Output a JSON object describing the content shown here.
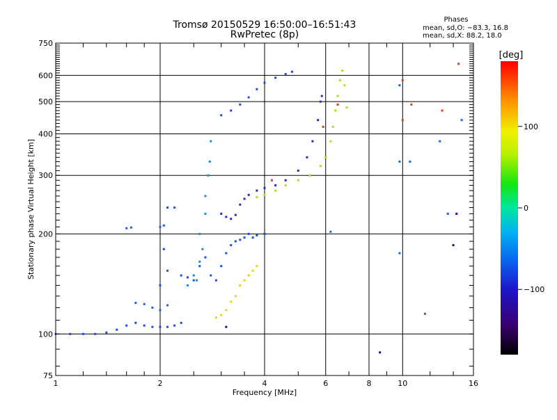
{
  "header": {
    "title_line1": "Tromsø 20150529 16:50:00–16:51:43",
    "title_line2": "RwPretec (8p)",
    "phases_title": "Phases",
    "phases_o": "mean, sd,O: −83.3, 16.8",
    "phases_x": "mean, sd,X:  88.2, 18.0"
  },
  "colorbar": {
    "label": "[deg]",
    "min": -180,
    "max": 180,
    "ticks": [
      {
        "value": 100,
        "label": "100"
      },
      {
        "value": 0,
        "label": "0"
      },
      {
        "value": -100,
        "label": "−100"
      }
    ]
  },
  "chart_data": {
    "type": "scatter",
    "xlabel": "Frequency [MHz]",
    "ylabel": "Stationary phase Virtual Height [km]",
    "x_scale": "log",
    "y_scale": "log",
    "xlim": [
      1,
      16
    ],
    "ylim": [
      75,
      750
    ],
    "x_ticks": [
      {
        "value": 1,
        "label": "1"
      },
      {
        "value": 2,
        "label": "2"
      },
      {
        "value": 4,
        "label": "4"
      },
      {
        "value": 6,
        "label": "6"
      },
      {
        "value": 8,
        "label": "8"
      },
      {
        "value": 10,
        "label": "10"
      },
      {
        "value": 16,
        "label": "16"
      }
    ],
    "x_grid": [
      2,
      4,
      6,
      8,
      10
    ],
    "y_ticks": [
      {
        "value": 75,
        "label": "75"
      },
      {
        "value": 100,
        "label": "100"
      },
      {
        "value": 200,
        "label": "200"
      },
      {
        "value": 300,
        "label": "300"
      },
      {
        "value": 400,
        "label": "400"
      },
      {
        "value": 500,
        "label": "500"
      },
      {
        "value": 600,
        "label": "600"
      },
      {
        "value": 750,
        "label": "750"
      }
    ],
    "y_grid": [
      100,
      200,
      300,
      400,
      500,
      600
    ],
    "series": [
      {
        "color": "#1e46e6",
        "points": [
          [
            1.0,
            100
          ],
          [
            1.1,
            100
          ],
          [
            1.2,
            100
          ],
          [
            1.3,
            100
          ],
          [
            1.4,
            101
          ],
          [
            1.5,
            103
          ],
          [
            1.6,
            106
          ],
          [
            1.7,
            108
          ],
          [
            1.8,
            106
          ],
          [
            1.9,
            105
          ],
          [
            2.0,
            105
          ],
          [
            2.1,
            105
          ],
          [
            2.2,
            106
          ],
          [
            2.3,
            108
          ]
        ]
      },
      {
        "color": "#1e5fe6",
        "points": [
          [
            1.7,
            124
          ],
          [
            1.8,
            123
          ],
          [
            1.9,
            120
          ],
          [
            2.0,
            118
          ],
          [
            2.1,
            122
          ],
          [
            1.6,
            208
          ],
          [
            1.65,
            209
          ],
          [
            2.0,
            210
          ],
          [
            2.05,
            212
          ]
        ]
      },
      {
        "color": "#1450f0",
        "points": [
          [
            2.0,
            140
          ],
          [
            2.1,
            155
          ],
          [
            2.05,
            180
          ],
          [
            2.1,
            240
          ],
          [
            2.2,
            240
          ],
          [
            2.3,
            150
          ],
          [
            2.4,
            148
          ],
          [
            2.5,
            145
          ],
          [
            2.6,
            160
          ],
          [
            2.7,
            170
          ],
          [
            2.8,
            150
          ],
          [
            2.9,
            145
          ],
          [
            3.0,
            160
          ],
          [
            3.1,
            175
          ],
          [
            3.2,
            185
          ],
          [
            3.3,
            190
          ],
          [
            3.4,
            192
          ],
          [
            3.5,
            195
          ],
          [
            3.6,
            200
          ],
          [
            3.7,
            195
          ],
          [
            3.8,
            198
          ],
          [
            4.0,
            200
          ]
        ]
      },
      {
        "color": "#148cdc",
        "points": [
          [
            2.4,
            140
          ],
          [
            2.5,
            150
          ],
          [
            2.6,
            200
          ],
          [
            2.7,
            230
          ],
          [
            2.75,
            300
          ],
          [
            2.8,
            380
          ],
          [
            2.78,
            330
          ],
          [
            2.7,
            260
          ],
          [
            2.65,
            180
          ],
          [
            2.6,
            165
          ],
          [
            2.55,
            145
          ]
        ]
      },
      {
        "color": "#2828c8",
        "points": [
          [
            3.0,
            230
          ],
          [
            3.1,
            225
          ],
          [
            3.2,
            222
          ],
          [
            3.3,
            228
          ],
          [
            3.4,
            245
          ],
          [
            3.5,
            255
          ],
          [
            3.6,
            262
          ],
          [
            3.8,
            270
          ],
          [
            4.0,
            275
          ],
          [
            4.3,
            280
          ],
          [
            4.6,
            290
          ],
          [
            5.0,
            310
          ],
          [
            5.3,
            340
          ],
          [
            5.5,
            380
          ],
          [
            5.7,
            440
          ],
          [
            5.8,
            500
          ],
          [
            5.85,
            520
          ]
        ]
      },
      {
        "color": "#2846d2",
        "points": [
          [
            3.0,
            455
          ],
          [
            3.2,
            470
          ],
          [
            3.4,
            490
          ],
          [
            3.6,
            515
          ],
          [
            3.8,
            545
          ],
          [
            4.0,
            570
          ],
          [
            4.3,
            590
          ],
          [
            4.6,
            605
          ],
          [
            4.8,
            615
          ]
        ]
      },
      {
        "color": "#a0e614",
        "points": [
          [
            3.8,
            258
          ],
          [
            4.0,
            262
          ],
          [
            4.3,
            270
          ],
          [
            4.6,
            280
          ],
          [
            5.0,
            290
          ],
          [
            5.4,
            300
          ],
          [
            5.8,
            320
          ],
          [
            6.0,
            340
          ],
          [
            6.2,
            380
          ],
          [
            6.3,
            420
          ],
          [
            6.4,
            470
          ],
          [
            6.5,
            520
          ],
          [
            6.6,
            580
          ],
          [
            6.7,
            620
          ],
          [
            6.8,
            560
          ],
          [
            6.9,
            480
          ]
        ]
      },
      {
        "color": "#e6d214",
        "points": [
          [
            2.9,
            112
          ],
          [
            3.0,
            114
          ],
          [
            3.1,
            118
          ],
          [
            3.2,
            125
          ],
          [
            3.3,
            130
          ],
          [
            3.4,
            140
          ],
          [
            3.5,
            145
          ],
          [
            3.6,
            150
          ],
          [
            3.7,
            155
          ],
          [
            3.8,
            160
          ]
        ]
      },
      {
        "color": "#dc3c14",
        "points": [
          [
            10.0,
            440
          ],
          [
            10.0,
            580
          ],
          [
            10.6,
            490
          ],
          [
            14.5,
            650
          ],
          [
            13.0,
            470
          ],
          [
            6.5,
            490
          ],
          [
            5.9,
            420
          ],
          [
            4.2,
            290
          ]
        ]
      },
      {
        "color": "#1e64dc",
        "points": [
          [
            9.8,
            560
          ],
          [
            9.8,
            330
          ],
          [
            9.8,
            175
          ],
          [
            12.8,
            380
          ],
          [
            14.8,
            440
          ],
          [
            10.5,
            330
          ],
          [
            11.6,
            115
          ],
          [
            13.5,
            230
          ],
          [
            6.2,
            203
          ]
        ]
      },
      {
        "color": "#320082",
        "points": [
          [
            8.6,
            88
          ],
          [
            14.0,
            185
          ],
          [
            14.3,
            230
          ],
          [
            3.1,
            105
          ]
        ]
      }
    ]
  }
}
